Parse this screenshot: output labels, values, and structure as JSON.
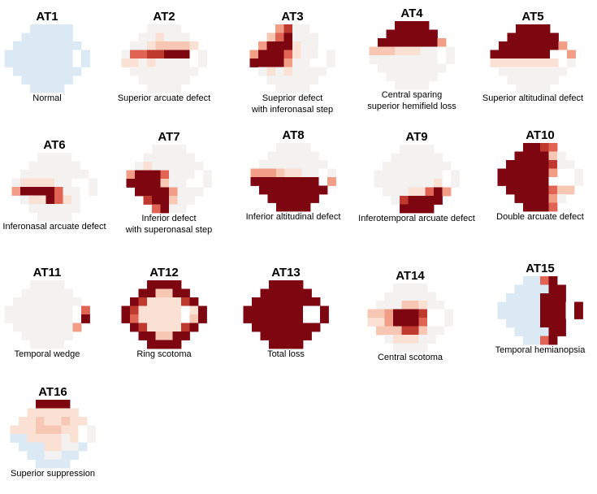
{
  "cell_scale": "9-point diverging (light blue to dark red)",
  "colors": {
    "0": "#dbe9f4",
    "1": "#f5f4f3",
    "2": "#fbe3d8",
    "3": "#f8cbb8",
    "4": "#f1a088",
    "5": "#e06454",
    "6": "#c13a33",
    "7": "#7f0010",
    "8": "#dbe9f4",
    "X": "#ffffff"
  },
  "panels": [
    {
      "title": "AT1",
      "caption": "Normal",
      "grid": [
        "...00000..",
        "..000000..",
        ".00000000.",
        "00000000X0",
        "00000000X0",
        ".00000000.",
        "..000000..",
        "...0000..."
      ]
    },
    {
      "title": "AT2",
      "caption": "Superior arcuate defect",
      "grid": [
        "...1111...",
        "..112111..",
        ".11233332.",
        "15566777X1",
        "22121111X1",
        ".11111111.",
        "..111111..",
        "...1111..."
      ]
    },
    {
      "title": "AT3",
      "caption": "Sueprior defect\nwith inferonasal step",
      "grid": [
        "...4611...",
        "..357111..",
        ".4777211..",
        "47775211X1",
        "7777411.X1",
        ".12121111.",
        "..111111..",
        "...1111..."
      ]
    },
    {
      "title": "AT4",
      "caption": "Central sparing\nsuperior hemifield loss",
      "grid": [
        "...7777...",
        "..777777..",
        ".77777774.",
        "33322211X1",
        "11111111X1",
        ".11111111.",
        "..111111..",
        "...1111..."
      ]
    },
    {
      "title": "AT5",
      "caption": "Superior altitudinal defect",
      "grid": [
        "...7777...",
        "..777777..",
        ".77777774.",
        "7777777XX4",
        "22222222X1",
        ".11111111.",
        "..111111..",
        "...1111..."
      ]
    },
    {
      "title": "AT6",
      "caption": "Inferonasal arcuate defect",
      "grid": [
        "...1111...",
        "..111111..",
        ".11111111.",
        "1222211.X1",
        "47777511X1",
        ".1227521..",
        "..111111..",
        "...1111..."
      ]
    },
    {
      "title": "AT7",
      "caption": "Inferior defect\nwith superonasal step",
      "grid": [
        "...1111...",
        "..111111..",
        ".12111111.",
        "47775111X1",
        "7777311.X1",
        ".77774111.",
        "..677311..",
        "...5711..."
      ]
    },
    {
      "title": "AT8",
      "caption": "Inferior altitudinal defect",
      "grid": [
        "...1111...",
        "..111111..",
        ".11111111.",
        "44432211X1",
        "77777777X4",
        ".77777777.",
        "..777777..",
        "...7777..."
      ]
    },
    {
      "title": "AT9",
      "caption": "Inferotemporal arcuate defect",
      "grid": [
        "...1111...",
        "..111111..",
        ".11111111.",
        "11111111X1",
        "11111112X1",
        ".11122574.",
        "..167777..",
        "...7777..."
      ]
    },
    {
      "title": "AT10",
      "caption": "Double arcuate defect",
      "grid": [
        "...7765...",
        "..777731..",
        ".77777611.",
        "7777774.X1",
        "777777X.X1",
        ".77777533.",
        "..777741..",
        "...7775..."
      ]
    },
    {
      "title": "AT11",
      "caption": "Temporal wedge",
      "grid": [
        "...1111...",
        "..111111..",
        ".11111111.",
        "11111111X5",
        "11111111X7",
        ".11111114.",
        "..111111..",
        "...1111..."
      ]
    },
    {
      "title": "AT12",
      "caption": "Ring scotoma",
      "grid": [
        "...7777...",
        "..773377..",
        ".76222267.",
        "7622222X27",
        "7522222X37",
        ".76222267.",
        "..773377..",
        "...7777..."
      ]
    },
    {
      "title": "AT13",
      "caption": "Total loss",
      "grid": [
        "...7777...",
        "..777777..",
        ".77777777.",
        "7777777XX7",
        "7777777XX7",
        ".77777777.",
        "..777777..",
        "...7777..."
      ]
    },
    {
      "title": "AT14",
      "caption": "Central scotoma",
      "grid": [
        "...1111...",
        "..111111..",
        ".11133211.",
        "3347776XX1",
        "2247775XX1",
        ".33366311.",
        "..122211..",
        "...1111..."
      ]
    },
    {
      "title": "AT15",
      "caption": "Temporal hemianopsia",
      "grid": [
        "...0057...",
        "..000077..",
        ".0000777..",
        "00000777X7",
        "00000777X7",
        ".0000777..",
        "..000077..",
        "...0057..."
      ]
    },
    {
      "title": "AT16",
      "caption": "Superior suppression",
      "grid": [
        "...7777...",
        "..222222..",
        ".22322322.",
        "22233322X1",
        "00222212X1",
        ".00022110.",
        "..001100..",
        "...0000..."
      ]
    }
  ]
}
